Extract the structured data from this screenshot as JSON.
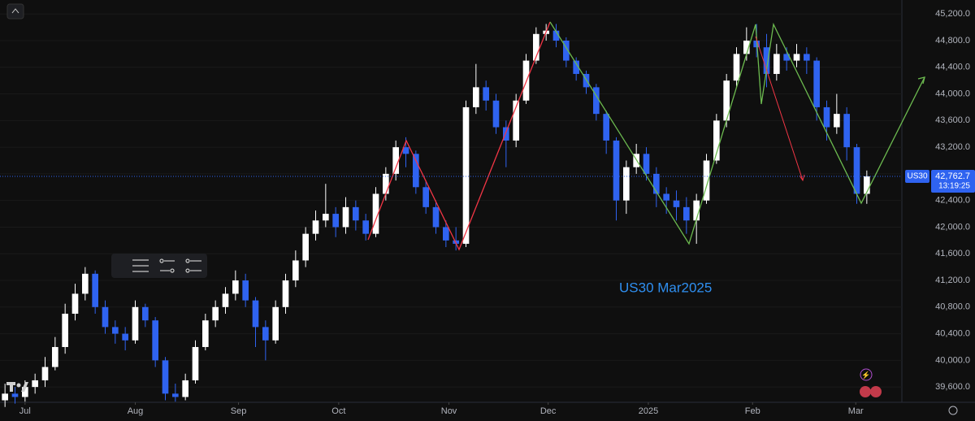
{
  "chart_data": {
    "type": "candlestick",
    "annotation": "US30 Mar2025",
    "symbol": "US30",
    "last_price": {
      "value": 42762.7,
      "label": "42,762.7"
    },
    "countdown": "13:19:25",
    "up_color": "#ffffff",
    "down_color": "#2f63f0",
    "ylim": [
      39370,
      45410
    ],
    "xlim": [
      -0.5,
      89.5
    ],
    "yticks": [
      {
        "value": 45200,
        "label": "45,200.0"
      },
      {
        "value": 44800,
        "label": "44,800.0"
      },
      {
        "value": 44400,
        "label": "44,400.0"
      },
      {
        "value": 44000,
        "label": "44,000.0"
      },
      {
        "value": 43600,
        "label": "43,600.0"
      },
      {
        "value": 43200,
        "label": "43,200.0"
      },
      {
        "value": 42800,
        "label": "42,800.0"
      },
      {
        "value": 42400,
        "label": "42,400.0"
      },
      {
        "value": 42000,
        "label": "42,000.0"
      },
      {
        "value": 41600,
        "label": "41,600.0"
      },
      {
        "value": 41200,
        "label": "41,200.0"
      },
      {
        "value": 40800,
        "label": "40,800.0"
      },
      {
        "value": 40400,
        "label": "40,400.0"
      },
      {
        "value": 40000,
        "label": "40,000.0"
      },
      {
        "value": 39600,
        "label": "39,600.0"
      }
    ],
    "xticks": [
      {
        "value": 2,
        "label": "Jul"
      },
      {
        "value": 13,
        "label": "Aug"
      },
      {
        "value": 23.3,
        "label": "Sep"
      },
      {
        "value": 33.3,
        "label": "Oct"
      },
      {
        "value": 44.3,
        "label": "Nov"
      },
      {
        "value": 54.2,
        "label": "Dec"
      },
      {
        "value": 64.2,
        "label": "2025"
      },
      {
        "value": 74.6,
        "label": "Feb"
      },
      {
        "value": 84.9,
        "label": "Mar"
      }
    ],
    "open": [
      39400,
      39500,
      39450,
      39600,
      39700,
      39900,
      40200,
      40700,
      41000,
      41300,
      40800,
      40500,
      40400,
      40300,
      40800,
      40600,
      40000,
      39500,
      39450,
      39700,
      40200,
      40600,
      40800,
      41000,
      41200,
      40900,
      40500,
      40300,
      40800,
      41200,
      41500,
      41900,
      42100,
      42200,
      42000,
      42300,
      42100,
      41900,
      42500,
      42800,
      43200,
      43100,
      42600,
      42300,
      42000,
      41800,
      41750,
      43800,
      44100,
      43900,
      43500,
      43300,
      43900,
      44500,
      44900,
      44950,
      44800,
      44500,
      44300,
      44100,
      43700,
      43300,
      42400,
      42900,
      43100,
      42800,
      42500,
      42400,
      42300,
      42100,
      42400,
      43000,
      43600,
      44200,
      44600,
      44800,
      44700,
      44300,
      44600,
      44500,
      44600,
      44500,
      43800,
      43500,
      43700,
      43200,
      42500
    ],
    "high": [
      39650,
      39600,
      39700,
      39800,
      40050,
      40350,
      40850,
      41150,
      41400,
      41350,
      40900,
      40600,
      40500,
      40900,
      40850,
      40650,
      40050,
      39650,
      39800,
      40300,
      40700,
      40900,
      41100,
      41350,
      41300,
      40950,
      40600,
      40900,
      41300,
      41650,
      42000,
      42250,
      42650,
      42300,
      42450,
      42400,
      42200,
      42600,
      42900,
      43300,
      43350,
      43150,
      42700,
      42400,
      42100,
      42000,
      43900,
      44450,
      44200,
      44000,
      43600,
      44000,
      44600,
      45000,
      45050,
      45050,
      44850,
      44550,
      44350,
      44150,
      43750,
      43350,
      43000,
      43250,
      43200,
      42900,
      42600,
      42550,
      42450,
      42500,
      43100,
      43700,
      44300,
      44700,
      45000,
      45050,
      44900,
      44750,
      44700,
      44750,
      44700,
      44550,
      43900,
      44000,
      43800,
      43250,
      42850
    ],
    "low": [
      39300,
      39350,
      39380,
      39500,
      39600,
      39850,
      40100,
      40600,
      40900,
      40700,
      40400,
      40250,
      40150,
      40250,
      40500,
      39900,
      39400,
      39380,
      39400,
      39650,
      40150,
      40500,
      40700,
      40900,
      40800,
      40200,
      40000,
      40250,
      40700,
      41100,
      41400,
      41800,
      42000,
      41850,
      41900,
      41950,
      41800,
      41850,
      42400,
      42700,
      42900,
      42500,
      42200,
      41900,
      41700,
      41650,
      41700,
      43700,
      43750,
      43400,
      42900,
      43200,
      43850,
      44450,
      44800,
      44700,
      44400,
      44200,
      44000,
      43600,
      43100,
      42100,
      42200,
      42800,
      42700,
      42300,
      42200,
      42100,
      41900,
      41750,
      42350,
      42950,
      43500,
      44100,
      44500,
      44550,
      44100,
      44200,
      44350,
      44400,
      44300,
      43600,
      43300,
      43400,
      43000,
      42350,
      42350
    ],
    "close": [
      39500,
      39450,
      39600,
      39700,
      39900,
      40200,
      40700,
      41000,
      41300,
      40800,
      40500,
      40400,
      40300,
      40800,
      40600,
      40000,
      39500,
      39450,
      39700,
      40200,
      40600,
      40800,
      41000,
      41200,
      40900,
      40500,
      40300,
      40800,
      41200,
      41500,
      41900,
      42100,
      42200,
      42000,
      42300,
      42100,
      41900,
      42500,
      42800,
      43200,
      43100,
      42600,
      42300,
      42000,
      41800,
      41750,
      43800,
      44100,
      43900,
      43500,
      43300,
      43900,
      44500,
      44900,
      44950,
      44800,
      44500,
      44300,
      44100,
      43700,
      43300,
      42400,
      42900,
      43100,
      42800,
      42500,
      42400,
      42300,
      42100,
      42400,
      43000,
      43600,
      44200,
      44600,
      44800,
      44700,
      44300,
      44600,
      44500,
      44600,
      44500,
      43800,
      43500,
      43700,
      43200,
      42500,
      42763
    ]
  }
}
